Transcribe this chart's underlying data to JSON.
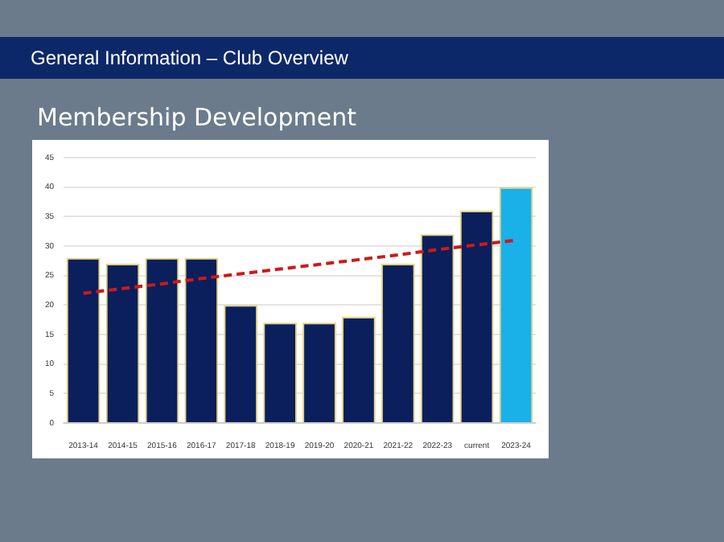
{
  "chart_data": {
    "type": "bar",
    "title": "Membership Development",
    "annotations": [
      "General Information – Club Overview"
    ],
    "categories": [
      "2013-14",
      "2014-15",
      "2015-16",
      "2016-17",
      "2017-18",
      "2018-19",
      "2019-20",
      "2020-21",
      "2021-22",
      "2022-23",
      "current",
      "2023-24"
    ],
    "series": [
      {
        "colors": [
          "#0b1f5c",
          "#0b1f5c",
          "#0b1f5c",
          "#0b1f5c",
          "#0b1f5c",
          "#0b1f5c",
          "#0b1f5c",
          "#0b1f5c",
          "#0b1f5c",
          "#0b1f5c",
          "#0b1f5c",
          "#1ab0e8"
        ],
        "values": [
          28,
          27,
          28,
          28,
          20,
          17,
          17,
          18,
          27,
          32,
          36,
          40
        ]
      },
      {
        "type": "line",
        "color": "#cc1a1a",
        "line_style": "dashed",
        "marker": "none",
        "values": [
          22,
          22.8,
          23.6,
          24.5,
          25.3,
          26.1,
          26.9,
          27.7,
          28.5,
          29.4,
          30.2,
          31
        ]
      }
    ],
    "ylim": [
      0,
      45
    ],
    "yticks": [
      0,
      5,
      10,
      15,
      20,
      25,
      30,
      35,
      40,
      45
    ],
    "grid": "y",
    "legend": false
  }
}
